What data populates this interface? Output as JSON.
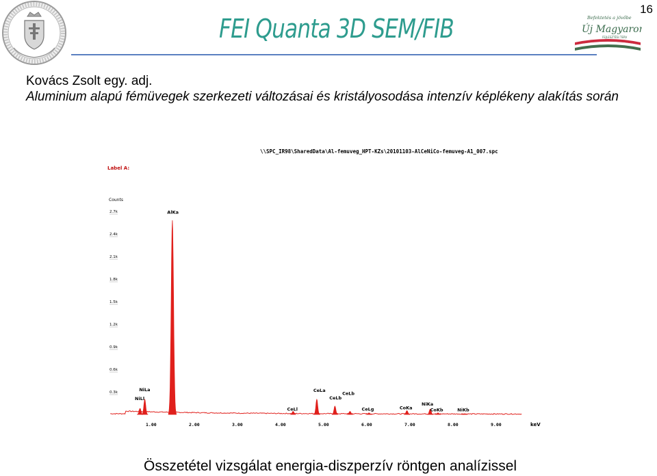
{
  "header": {
    "title": "FEI Quanta 3D SEM/FIB",
    "page_number": "16",
    "right_logo_text": [
      "Befektetés a jövőbe",
      "Új Magyarország",
      "FEJLESZTÉSI TERV"
    ]
  },
  "body": {
    "author": "Kovács Zsolt egy. adj.",
    "subtitle": "Aluminium alapú fémüvegek szerkezeti változásai és kristályosodása intenzív képlékeny alakítás során"
  },
  "footer": {
    "caption": "Összetétel vizsgálat energia-diszperzív röntgen analízissel"
  },
  "colors": {
    "title": "#2e9c8e",
    "spectrum": "#e0201c",
    "rule": "#5a7fc0",
    "flag_red": "#cd2a3e",
    "flag_green": "#436f4d"
  },
  "chart_data": {
    "type": "line",
    "title": "\\\\SPC_IR98\\SharedData\\Al-femuveg_HPT-KZs\\20101103-AlCeNiCo-femuveg-A1_007.spc",
    "label": "Label A:",
    "ylabel": "Counts",
    "xlabel": "keV",
    "xlim": [
      0.0,
      10.0
    ],
    "ylim": [
      0,
      2.8
    ],
    "x_ticks": [
      "1.00",
      "2.00",
      "3.00",
      "4.00",
      "5.00",
      "6.00",
      "7.00",
      "8.00",
      "9.00"
    ],
    "y_ticks": [
      "0.3k",
      "0.6k",
      "0.9k",
      "1.2k",
      "1.5k",
      "1.8k",
      "2.1k",
      "2.4k",
      "2.7k"
    ],
    "y_tick_values": [
      0.3,
      0.6,
      0.9,
      1.2,
      1.5,
      1.8,
      2.1,
      2.4,
      2.7
    ],
    "peaks": [
      {
        "label": "NiLa",
        "x": 0.85,
        "height": 0.2,
        "label_x": 0.72,
        "label_y": 0.31
      },
      {
        "label": "NiLl",
        "x": 0.74,
        "height": 0.08,
        "label_x": 0.62,
        "label_y": 0.19
      },
      {
        "label": "AlKa",
        "x": 1.49,
        "height": 2.58,
        "label_x": 1.37,
        "label_y": 2.67
      },
      {
        "label": "CeLl",
        "x": 4.29,
        "height": 0.04,
        "label_x": 4.15,
        "label_y": 0.05
      },
      {
        "label": "CeLa",
        "x": 4.84,
        "height": 0.2,
        "label_x": 4.76,
        "label_y": 0.3
      },
      {
        "label": "CeLb",
        "x": 5.26,
        "height": 0.11,
        "label_x": 5.13,
        "label_y": 0.2
      },
      {
        "label": "CeLb",
        "x": 5.61,
        "height": 0.04,
        "label_x": 5.43,
        "label_y": 0.26
      },
      {
        "label": "CeLg",
        "x": 6.05,
        "height": 0.02,
        "label_x": 5.88,
        "label_y": 0.05
      },
      {
        "label": "CoKa",
        "x": 6.93,
        "height": 0.05,
        "label_x": 6.76,
        "label_y": 0.07
      },
      {
        "label": "NiKa",
        "x": 7.47,
        "height": 0.07,
        "label_x": 7.27,
        "label_y": 0.12
      },
      {
        "label": "CoKb",
        "x": 7.65,
        "height": 0.02,
        "label_x": 7.47,
        "label_y": 0.04
      },
      {
        "label": "NiKb",
        "x": 8.26,
        "height": 0.01,
        "label_x": 8.1,
        "label_y": 0.04
      }
    ],
    "grid": false,
    "legend": "none"
  }
}
